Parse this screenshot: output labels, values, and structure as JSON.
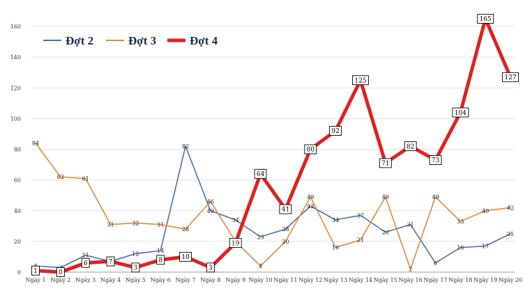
{
  "chart_data": {
    "type": "line",
    "title": "",
    "xlabel": "",
    "ylabel": "",
    "ylim": [
      0,
      165
    ],
    "yticks": [
      0,
      20,
      40,
      60,
      80,
      100,
      120,
      140,
      160
    ],
    "grid": true,
    "legend_position": "top-left",
    "categories": [
      "Ngày 1",
      "Ngày 2",
      "Ngày 3",
      "Ngày 4",
      "Ngày 5",
      "Ngày 6",
      "Ngày 7",
      "Ngày 8",
      "Ngày 9",
      "Ngày 10",
      "Ngày 11",
      "Ngày 12",
      "Ngày 13",
      "Ngày 14",
      "Ngày 15",
      "Ngày 16",
      "Ngày 17",
      "Ngày 18",
      "Ngày 19",
      "Ngày 20"
    ],
    "series": [
      {
        "name": "Đợt 2",
        "color": "#4a6fa5",
        "style": "thin",
        "values": [
          4,
          3,
          11,
          7,
          12,
          14,
          82,
          40,
          34,
          23,
          28,
          43,
          34,
          37,
          26,
          31,
          6,
          16,
          17,
          25
        ]
      },
      {
        "name": "Đợt 3",
        "color": "#e08a3c",
        "style": "thin",
        "values": [
          84,
          62,
          61,
          31,
          32,
          31,
          28,
          46,
          20,
          4,
          20,
          49,
          16,
          21,
          49,
          2,
          49,
          33,
          40,
          42
        ]
      },
      {
        "name": "Đợt 4",
        "color": "#e02020",
        "style": "thick-boxed",
        "values": [
          1,
          0,
          6,
          7,
          3,
          8,
          10,
          3,
          19,
          64,
          41,
          80,
          92,
          125,
          71,
          82,
          73,
          104,
          165,
          127
        ]
      }
    ]
  }
}
